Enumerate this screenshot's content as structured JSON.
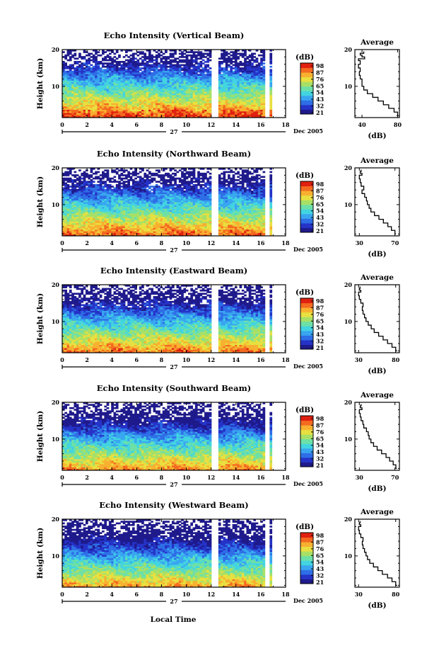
{
  "figure": {
    "xlabel": "Local Time",
    "day_label": "27",
    "date_label": "Dec 2005",
    "colorbar_unit": "(dB)",
    "avg_title": "Average",
    "avg_xlabel": "(dB)",
    "ylabel": "Height (km)",
    "colors": {
      "colormap": [
        "#1f1a8c",
        "#2533c8",
        "#2e6ee6",
        "#39a6f0",
        "#42d4e0",
        "#6de0a8",
        "#a8e066",
        "#e8e040",
        "#f8b030",
        "#f36a20",
        "#e02010"
      ],
      "gap": "#ffffff",
      "line": "#000000"
    }
  },
  "chart_data": [
    {
      "type": "heatmap",
      "title": "Echo Intensity (Vertical Beam)",
      "xlabel": "Local Time",
      "ylabel": "Height (km)",
      "xlim": [
        0,
        18
      ],
      "ylim": [
        1.5,
        20
      ],
      "xticks": [
        0,
        2,
        4,
        6,
        8,
        10,
        12,
        14,
        16,
        18
      ],
      "xtick_labels": [
        "0",
        "2",
        "4",
        "6",
        "8",
        "10",
        "12",
        "14",
        "16",
        "18"
      ],
      "yticks": [
        10,
        20
      ],
      "ytick_labels": [
        "10",
        "20"
      ],
      "colorbar": {
        "unit": "(dB)",
        "ticks": [
          "98",
          "87",
          "76",
          "65",
          "54",
          "43",
          "32",
          "21"
        ]
      },
      "data_gaps_hours": [
        [
          12.0,
          12.5
        ],
        [
          16.4,
          16.7
        ]
      ],
      "average_profile": {
        "title": "Average",
        "xlabel": "(dB)",
        "xlim": [
          32,
          82
        ],
        "xticks": [
          40,
          80
        ],
        "xtick_labels": [
          "40",
          "80"
        ],
        "ylim": [
          1.5,
          20
        ],
        "height_km": [
          2,
          3,
          4,
          5,
          6,
          7,
          8,
          9,
          10,
          11,
          12,
          13,
          14,
          15,
          16,
          17,
          17.5,
          18,
          18.5,
          19,
          19.5
        ],
        "db": [
          79,
          80,
          76,
          70,
          64,
          58,
          52,
          46,
          42,
          40,
          40,
          38,
          37,
          38,
          36,
          38,
          36,
          43,
          40,
          38,
          42
        ]
      }
    },
    {
      "type": "heatmap",
      "title": "Echo Intensity (Northward Beam)",
      "xlabel": "Local Time",
      "ylabel": "Height (km)",
      "xlim": [
        0,
        18
      ],
      "ylim": [
        1.5,
        20
      ],
      "xticks": [
        0,
        2,
        4,
        6,
        8,
        10,
        12,
        14,
        16,
        18
      ],
      "xtick_labels": [
        "0",
        "2",
        "4",
        "6",
        "8",
        "10",
        "12",
        "14",
        "16",
        "18"
      ],
      "yticks": [
        10,
        20
      ],
      "ytick_labels": [
        "10",
        "20"
      ],
      "colorbar": {
        "unit": "(dB)",
        "ticks": [
          "98",
          "87",
          "76",
          "65",
          "54",
          "43",
          "32",
          "21"
        ]
      },
      "data_gaps_hours": [
        [
          12.0,
          12.5
        ],
        [
          16.4,
          16.7
        ]
      ],
      "average_profile": {
        "title": "Average",
        "xlabel": "(dB)",
        "xlim": [
          25,
          75
        ],
        "xticks": [
          30,
          70
        ],
        "xtick_labels": [
          "30",
          "70"
        ],
        "ylim": [
          1.5,
          20
        ],
        "height_km": [
          2,
          3,
          4,
          5,
          6,
          7,
          8,
          9,
          10,
          11,
          12,
          13,
          14,
          15,
          16,
          17,
          18,
          18.5,
          19,
          19.5
        ],
        "db": [
          71,
          70,
          66,
          62,
          57,
          52,
          47,
          43,
          41,
          39,
          38,
          36,
          33,
          35,
          32,
          31,
          30,
          33,
          31,
          32
        ]
      }
    },
    {
      "type": "heatmap",
      "title": "Echo Intensity (Eastward Beam)",
      "xlabel": "Local Time",
      "ylabel": "Height (km)",
      "xlim": [
        0,
        18
      ],
      "ylim": [
        1.5,
        20
      ],
      "xticks": [
        0,
        2,
        4,
        6,
        8,
        10,
        12,
        14,
        16,
        18
      ],
      "xtick_labels": [
        "0",
        "2",
        "4",
        "6",
        "8",
        "10",
        "12",
        "14",
        "16",
        "18"
      ],
      "yticks": [
        10,
        20
      ],
      "ytick_labels": [
        "10",
        "20"
      ],
      "colorbar": {
        "unit": "(dB)",
        "ticks": [
          "98",
          "87",
          "76",
          "65",
          "54",
          "43",
          "32",
          "21"
        ]
      },
      "data_gaps_hours": [
        [
          12.0,
          12.5
        ],
        [
          16.4,
          16.7
        ]
      ],
      "average_profile": {
        "title": "Average",
        "xlabel": "(dB)",
        "xlim": [
          25,
          85
        ],
        "xticks": [
          30,
          80
        ],
        "xtick_labels": [
          "30",
          "80"
        ],
        "ylim": [
          1.5,
          20
        ],
        "height_km": [
          2,
          3,
          4,
          5,
          6,
          7,
          8,
          9,
          10,
          11,
          12,
          13,
          14,
          15,
          16,
          17,
          18,
          18.5,
          19,
          19.5
        ],
        "db": [
          82,
          80,
          75,
          69,
          63,
          57,
          51,
          47,
          43,
          40,
          38,
          36,
          35,
          36,
          33,
          31,
          30,
          33,
          31,
          32
        ]
      }
    },
    {
      "type": "heatmap",
      "title": "Echo Intensity (Southward Beam)",
      "xlabel": "Local Time",
      "ylabel": "Height (km)",
      "xlim": [
        0,
        18
      ],
      "ylim": [
        1.5,
        20
      ],
      "xticks": [
        0,
        2,
        4,
        6,
        8,
        10,
        12,
        14,
        16,
        18
      ],
      "xtick_labels": [
        "0",
        "2",
        "4",
        "6",
        "8",
        "10",
        "12",
        "14",
        "16",
        "18"
      ],
      "yticks": [
        10,
        20
      ],
      "ytick_labels": [
        "10",
        "20"
      ],
      "colorbar": {
        "unit": "(dB)",
        "ticks": [
          "98",
          "87",
          "76",
          "65",
          "54",
          "43",
          "32",
          "21"
        ]
      },
      "data_gaps_hours": [
        [
          12.0,
          12.5
        ],
        [
          16.4,
          16.7
        ]
      ],
      "average_profile": {
        "title": "Average",
        "xlabel": "(dB)",
        "xlim": [
          25,
          75
        ],
        "xticks": [
          30,
          70
        ],
        "xtick_labels": [
          "30",
          "70"
        ],
        "ylim": [
          1.5,
          20
        ],
        "height_km": [
          2,
          3,
          4,
          5,
          6,
          7,
          8,
          9,
          10,
          11,
          12,
          13,
          14,
          15,
          16,
          17,
          18,
          18.5,
          19,
          19.5
        ],
        "db": [
          72,
          71,
          68,
          64,
          60,
          55,
          50,
          46,
          43,
          41,
          40,
          38,
          35,
          34,
          32,
          31,
          30,
          33,
          31,
          32
        ]
      }
    },
    {
      "type": "heatmap",
      "title": "Echo Intensity (Westward Beam)",
      "xlabel": "Local Time",
      "ylabel": "Height (km)",
      "xlim": [
        0,
        18
      ],
      "ylim": [
        1.5,
        20
      ],
      "xticks": [
        0,
        2,
        4,
        6,
        8,
        10,
        12,
        14,
        16,
        18
      ],
      "xtick_labels": [
        "0",
        "2",
        "4",
        "6",
        "8",
        "10",
        "12",
        "14",
        "16",
        "18"
      ],
      "yticks": [
        10,
        20
      ],
      "ytick_labels": [
        "10",
        "20"
      ],
      "colorbar": {
        "unit": "(dB)",
        "ticks": [
          "98",
          "87",
          "76",
          "65",
          "54",
          "43",
          "32",
          "21"
        ]
      },
      "data_gaps_hours": [
        [
          12.0,
          12.5
        ],
        [
          16.4,
          16.7
        ]
      ],
      "average_profile": {
        "title": "Average",
        "xlabel": "(dB)",
        "xlim": [
          25,
          85
        ],
        "xticks": [
          30,
          80
        ],
        "xtick_labels": [
          "30",
          "80"
        ],
        "ylim": [
          1.5,
          20
        ],
        "height_km": [
          2,
          3,
          4,
          5,
          6,
          7,
          8,
          9,
          10,
          11,
          12,
          13,
          14,
          15,
          16,
          17,
          18,
          18.5,
          19,
          19.5
        ],
        "db": [
          82,
          80,
          75,
          69,
          62,
          56,
          50,
          45,
          42,
          40,
          38,
          36,
          35,
          36,
          33,
          31,
          30,
          33,
          31,
          32
        ]
      }
    }
  ]
}
